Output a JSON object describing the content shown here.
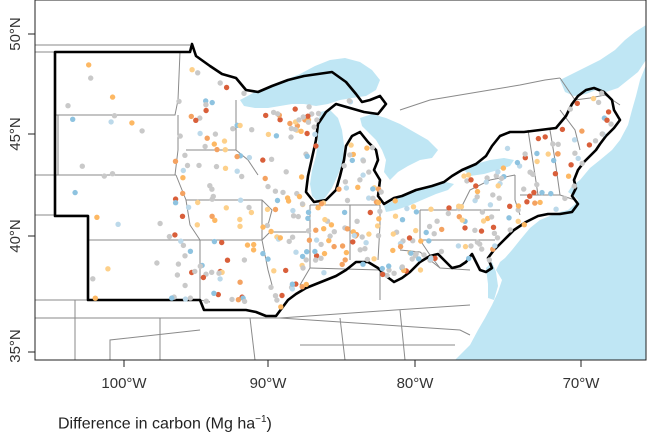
{
  "colors": {
    "ocean": "#bfe6f4",
    "land": "#ffffff",
    "state_border": "#8a8a8a",
    "study_border": "#000000",
    "point_palette": [
      "#c9c9c9",
      "#c9c9c9",
      "#c9c9c9",
      "#fdd08a",
      "#fdb863",
      "#f4a261",
      "#d95f3a",
      "#bcd9ea",
      "#8ec3e0"
    ]
  },
  "icons": [
    "lake-shape",
    "ocean-shape"
  ],
  "axes": {
    "lon_ticks": [
      {
        "label": "100°W",
        "value": -100
      },
      {
        "label": "90°W",
        "value": -90
      },
      {
        "label": "80°W",
        "value": -80
      },
      {
        "label": "70°W",
        "value": -70
      }
    ],
    "lat_ticks": [
      {
        "label": "50°N",
        "value": 50
      },
      {
        "label": "45°N",
        "value": 45
      },
      {
        "label": "40°N",
        "value": 40
      },
      {
        "label": "35°N",
        "value": 35
      }
    ]
  },
  "caption": {
    "text": "Difference in carbon (Mg ha",
    "superscript": "−1",
    "suffix": ")"
  },
  "plot_points_count": 430
}
